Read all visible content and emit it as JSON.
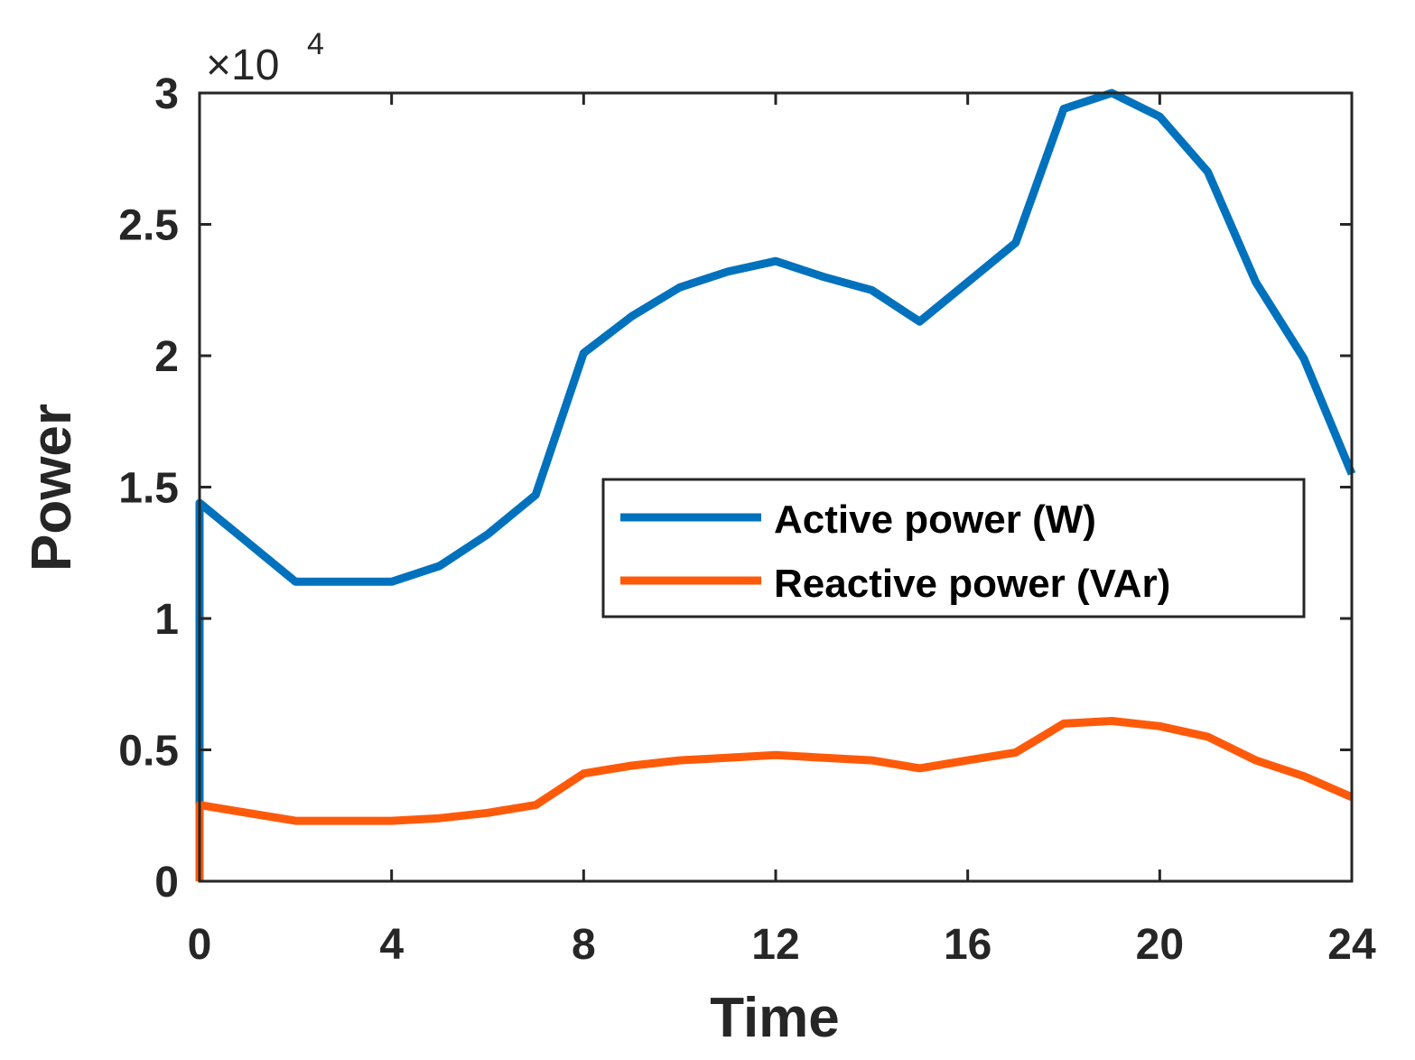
{
  "chart_data": {
    "type": "line",
    "title": "",
    "xlabel": "Time",
    "ylabel": "Power",
    "xlim": [
      0,
      24
    ],
    "ylim": [
      0,
      30000
    ],
    "x_ticks": [
      0,
      4,
      8,
      12,
      16,
      20,
      24
    ],
    "x_tick_labels": [
      "0",
      "4",
      "8",
      "12",
      "16",
      "20",
      "24"
    ],
    "y_ticks": [
      0,
      5000,
      10000,
      15000,
      20000,
      25000,
      30000
    ],
    "y_tick_labels": [
      "0",
      "0.5",
      "1",
      "1.5",
      "2",
      "2.5",
      "3"
    ],
    "y_exponent_label": "×10",
    "y_exponent_power": "4",
    "grid": false,
    "legend_position": "center-right",
    "series": [
      {
        "name": "Active power (W)",
        "color": "#0072BD",
        "x": [
          0,
          0,
          2,
          3,
          4,
          5,
          6,
          7,
          8,
          9,
          10,
          11,
          12,
          13,
          14,
          15,
          16,
          17,
          18,
          19,
          20,
          21,
          22,
          23,
          24
        ],
        "y": [
          0,
          14400,
          11400,
          11400,
          11400,
          12000,
          13200,
          14700,
          20100,
          21500,
          22600,
          23200,
          23600,
          23000,
          22500,
          21300,
          22800,
          24300,
          29400,
          30000,
          29100,
          27000,
          22800,
          19900,
          15500
        ]
      },
      {
        "name": "Reactive power (VAr)",
        "color": "#FF5A0A",
        "x": [
          0,
          0,
          2,
          3,
          4,
          5,
          6,
          7,
          8,
          9,
          10,
          11,
          12,
          13,
          14,
          15,
          16,
          17,
          18,
          19,
          20,
          21,
          22,
          23,
          24
        ],
        "y": [
          0,
          2900,
          2300,
          2300,
          2300,
          2400,
          2600,
          2900,
          4100,
          4400,
          4600,
          4700,
          4800,
          4700,
          4600,
          4300,
          4600,
          4900,
          6000,
          6100,
          5900,
          5500,
          4600,
          4000,
          3200
        ]
      }
    ]
  }
}
